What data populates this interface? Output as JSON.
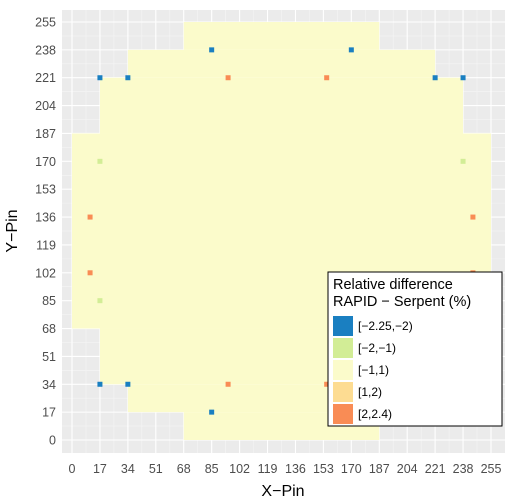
{
  "chart_data": {
    "type": "heatmap",
    "title": "",
    "xlabel": "X−Pin",
    "ylabel": "Y−Pin",
    "xlim": [
      0,
      255
    ],
    "ylim": [
      0,
      255
    ],
    "grid": true,
    "x_ticks": [
      "0",
      "17",
      "34",
      "51",
      "68",
      "85",
      "102",
      "119",
      "136",
      "153",
      "170",
      "187",
      "204",
      "221",
      "238",
      "255"
    ],
    "y_ticks": [
      "0",
      "17",
      "34",
      "51",
      "68",
      "85",
      "102",
      "119",
      "136",
      "153",
      "170",
      "187",
      "204",
      "221",
      "238",
      "255"
    ],
    "legend": {
      "title_line1": "Relative difference",
      "title_line2": "RAPID − Serpent (%)",
      "placement": "bottom-right",
      "categories": [
        {
          "label": "[−2.25,−2)",
          "color": "#1a7fc1"
        },
        {
          "label": "[−2,−1)",
          "color": "#d2ed96"
        },
        {
          "label": "[−1,1)",
          "color": "#fbfbcb"
        },
        {
          "label": "[1,2)",
          "color": "#fddc92"
        },
        {
          "label": "[2,2.4)",
          "color": "#f98c55"
        }
      ]
    },
    "core_extent_by_y_band": [
      {
        "y": [
          0,
          17
        ],
        "x": [
          68,
          187
        ]
      },
      {
        "y": [
          17,
          34
        ],
        "x": [
          34,
          221
        ]
      },
      {
        "y": [
          34,
          68
        ],
        "x": [
          17,
          238
        ]
      },
      {
        "y": [
          68,
          187
        ],
        "x": [
          0,
          255
        ]
      },
      {
        "y": [
          187,
          221
        ],
        "x": [
          17,
          238
        ]
      },
      {
        "y": [
          221,
          238
        ],
        "x": [
          34,
          221
        ]
      },
      {
        "y": [
          238,
          255
        ],
        "x": [
          68,
          187
        ]
      }
    ],
    "hotspots": [
      {
        "category": "[2,2.4)",
        "x": 95,
        "y": 221
      },
      {
        "category": "[2,2.4)",
        "x": 155,
        "y": 221
      },
      {
        "category": "[2,2.4)",
        "x": 95,
        "y": 34
      },
      {
        "category": "[2,2.4)",
        "x": 155,
        "y": 34
      },
      {
        "category": "[2,2.4)",
        "x": 11,
        "y": 136
      },
      {
        "category": "[2,2.4)",
        "x": 11,
        "y": 102
      },
      {
        "category": "[2,2.4)",
        "x": 244,
        "y": 136
      },
      {
        "category": "[2,2.4)",
        "x": 244,
        "y": 102
      },
      {
        "category": "[−2.25,−2)",
        "x": 34,
        "y": 221
      },
      {
        "category": "[−2.25,−2)",
        "x": 221,
        "y": 221
      },
      {
        "category": "[−2.25,−2)",
        "x": 34,
        "y": 34
      },
      {
        "category": "[−2.25,−2)",
        "x": 17,
        "y": 221
      },
      {
        "category": "[−2.25,−2)",
        "x": 238,
        "y": 221
      },
      {
        "category": "[−2.25,−2)",
        "x": 85,
        "y": 238
      },
      {
        "category": "[−2.25,−2)",
        "x": 170,
        "y": 238
      },
      {
        "category": "[−2.25,−2)",
        "x": 85,
        "y": 17
      },
      {
        "category": "[−2.25,−2)",
        "x": 17,
        "y": 34
      },
      {
        "category": "[−2,−1)",
        "x": 17,
        "y": 170
      },
      {
        "category": "[−2,−1)",
        "x": 238,
        "y": 170
      },
      {
        "category": "[−2,−1)",
        "x": 17,
        "y": 85
      }
    ]
  }
}
